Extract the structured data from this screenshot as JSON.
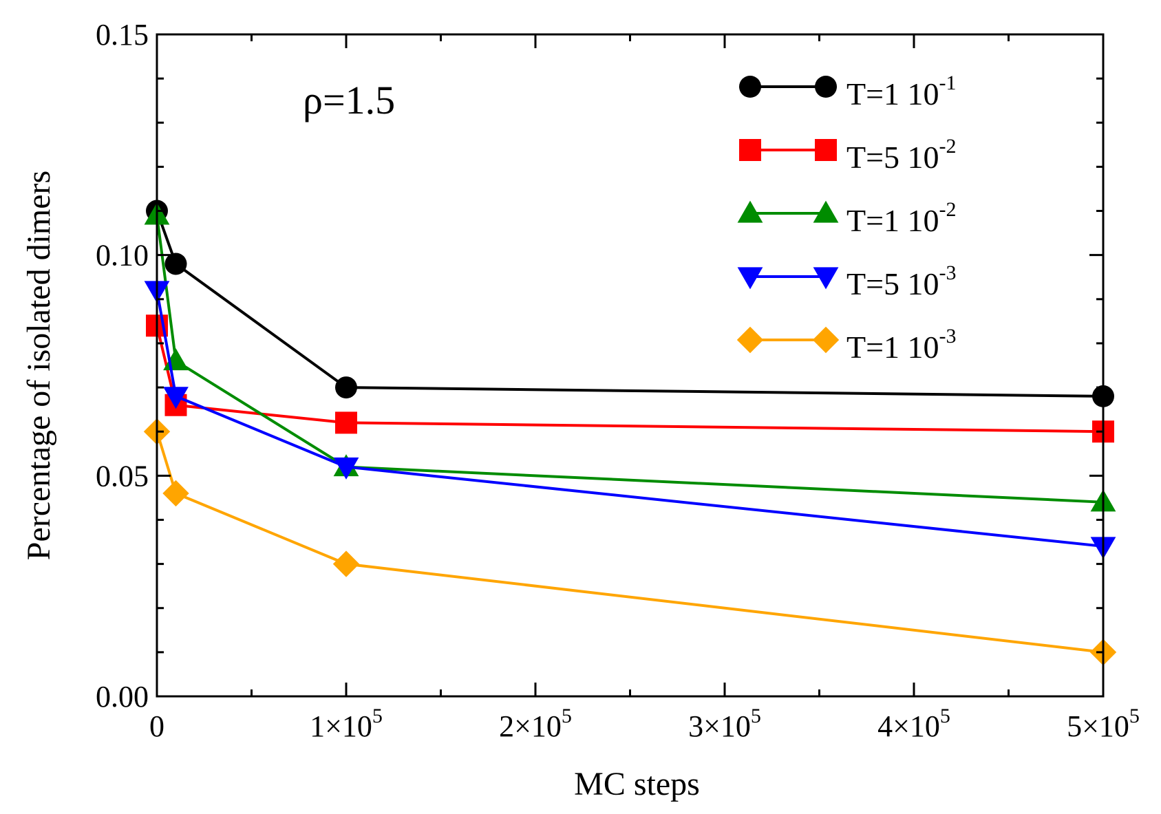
{
  "chart_data": {
    "type": "line",
    "title": "",
    "xlabel": "MC steps",
    "ylabel": "Percentage of isolated dimers",
    "xlim": [
      0,
      500000
    ],
    "ylim": [
      0,
      0.15
    ],
    "grid": false,
    "legend_position": "top-right",
    "annotation": "ρ=1.5",
    "x_ticks": [
      {
        "value": 0,
        "mantissa": "0",
        "exp": ""
      },
      {
        "value": 100000,
        "mantissa": "1×10",
        "exp": "5"
      },
      {
        "value": 200000,
        "mantissa": "2×10",
        "exp": "5"
      },
      {
        "value": 300000,
        "mantissa": "3×10",
        "exp": "5"
      },
      {
        "value": 400000,
        "mantissa": "4×10",
        "exp": "5"
      },
      {
        "value": 500000,
        "mantissa": "5×10",
        "exp": "5"
      }
    ],
    "y_ticks": [
      {
        "value": 0.0,
        "label": "0.00"
      },
      {
        "value": 0.05,
        "label": "0.05"
      },
      {
        "value": 0.1,
        "label": "0.10"
      },
      {
        "value": 0.15,
        "label": "0.15"
      }
    ],
    "series": [
      {
        "name": "T=1 10",
        "exp": "-1",
        "color": "#000000",
        "marker": "circle",
        "x": [
          0,
          10000,
          100000,
          500000
        ],
        "y": [
          0.11,
          0.098,
          0.07,
          0.068
        ]
      },
      {
        "name": "T=5 10",
        "exp": "-2",
        "color": "#ff0000",
        "marker": "square",
        "x": [
          0,
          10000,
          100000,
          500000
        ],
        "y": [
          0.084,
          0.066,
          0.062,
          0.06
        ]
      },
      {
        "name": "T=1 10",
        "exp": "-2",
        "color": "#008c00",
        "marker": "triangle-up",
        "x": [
          0,
          10000,
          100000,
          500000
        ],
        "y": [
          0.109,
          0.076,
          0.052,
          0.044
        ]
      },
      {
        "name": "T=5 10",
        "exp": "-3",
        "color": "#0000ff",
        "marker": "triangle-down",
        "x": [
          0,
          10000,
          100000,
          500000
        ],
        "y": [
          0.092,
          0.068,
          0.052,
          0.034
        ]
      },
      {
        "name": "T=1 10",
        "exp": "-3",
        "color": "#ffa500",
        "marker": "diamond",
        "x": [
          0,
          10000,
          100000,
          500000
        ],
        "y": [
          0.06,
          0.046,
          0.03,
          0.01
        ]
      }
    ]
  }
}
